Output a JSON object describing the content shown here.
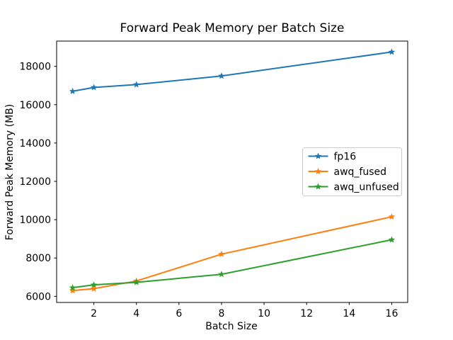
{
  "chart_data": {
    "type": "line",
    "title": "Forward Peak Memory per Batch Size",
    "xlabel": "Batch Size",
    "ylabel": "Forward Peak Memory (MB)",
    "x": [
      1,
      2,
      4,
      8,
      16
    ],
    "series": [
      {
        "name": "fp16",
        "color": "#1f77b4",
        "values": [
          16700,
          16900,
          17050,
          17500,
          18750
        ]
      },
      {
        "name": "awq_fused",
        "color": "#ff7f0e",
        "values": [
          6300,
          6400,
          6800,
          8200,
          10150
        ]
      },
      {
        "name": "awq_unfused",
        "color": "#2ca02c",
        "values": [
          6450,
          6600,
          6730,
          7150,
          8950
        ]
      }
    ],
    "xticks": [
      2,
      4,
      6,
      8,
      10,
      12,
      14,
      16
    ],
    "yticks": [
      6000,
      8000,
      10000,
      12000,
      14000,
      16000,
      18000
    ],
    "xlim": [
      0.25,
      16.75
    ],
    "ylim": [
      5680,
      19320
    ],
    "marker": "star",
    "grid": false,
    "legend_position": "center-right",
    "legend_border_color": "#cccccc",
    "axis_color": "#000000",
    "background_color": "#ffffff"
  }
}
